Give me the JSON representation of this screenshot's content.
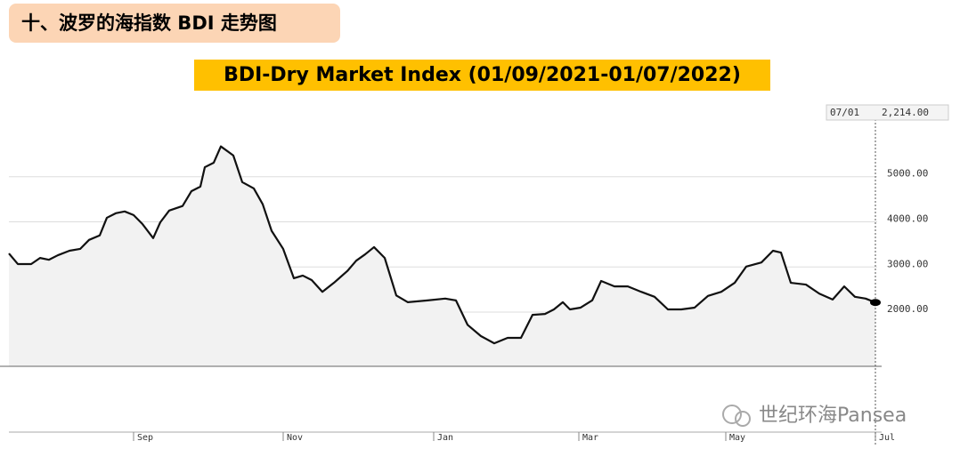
{
  "header": {
    "title": "十、波罗的海指数 BDI 走势图"
  },
  "chart_data": {
    "type": "area",
    "title": "BDI-Dry Market Index (01/09/2021-01/07/2022)",
    "x": [
      0,
      10,
      25,
      35,
      45,
      55,
      68,
      80,
      90,
      102,
      110,
      120,
      130,
      140,
      150,
      162,
      170,
      180,
      195,
      205,
      215,
      220,
      230,
      238,
      252,
      262,
      275,
      285,
      295,
      308,
      320,
      330,
      340,
      352,
      365,
      380,
      390,
      400,
      410,
      422,
      435,
      448,
      470,
      490,
      502,
      515,
      530,
      545,
      560,
      575,
      588,
      602,
      612,
      622,
      630,
      642,
      655,
      665,
      680,
      695,
      710,
      725,
      740,
      755,
      770,
      785,
      800,
      815,
      828,
      845,
      858,
      867,
      878,
      895,
      910,
      925,
      938,
      950,
      962,
      973
    ],
    "values": [
      3300,
      3065,
      3065,
      3200,
      3160,
      3260,
      3360,
      3400,
      3600,
      3700,
      4090,
      4190,
      4230,
      4150,
      3950,
      3640,
      3990,
      4250,
      4350,
      4680,
      4780,
      5210,
      5310,
      5670,
      5470,
      4880,
      4740,
      4390,
      3800,
      3400,
      2750,
      2810,
      2710,
      2450,
      2650,
      2910,
      3140,
      3280,
      3440,
      3200,
      2370,
      2220,
      2260,
      2300,
      2260,
      1720,
      1470,
      1310,
      1430,
      1430,
      1940,
      1960,
      2060,
      2220,
      2060,
      2100,
      2260,
      2690,
      2570,
      2570,
      2450,
      2340,
      2060,
      2060,
      2100,
      2360,
      2450,
      2650,
      3010,
      3100,
      3360,
      3320,
      2650,
      2610,
      2410,
      2280,
      2570,
      2340,
      2300,
      2214
    ],
    "color": "#111111",
    "fill": "#f2f2f2",
    "xlim": [
      0,
      975
    ],
    "xticks": [
      {
        "value": 140,
        "label": "Sep"
      },
      {
        "value": 308,
        "label": "Nov"
      },
      {
        "value": 477,
        "label": "Jan"
      },
      {
        "value": 640,
        "label": "Mar"
      },
      {
        "value": 805,
        "label": "May"
      },
      {
        "value": 973,
        "label": "Jul"
      }
    ],
    "ylim": [
      800,
      6550
    ],
    "yticks": [
      {
        "value": 2000,
        "label": "2000.00"
      },
      {
        "value": 3000,
        "label": "3000.00"
      },
      {
        "value": 4000,
        "label": "4000.00"
      },
      {
        "value": 5000,
        "label": "5000.00"
      }
    ],
    "grid": true,
    "last_point": {
      "date": "07/01",
      "value": "2,214.00"
    }
  },
  "watermark": "世纪环海Pansea"
}
